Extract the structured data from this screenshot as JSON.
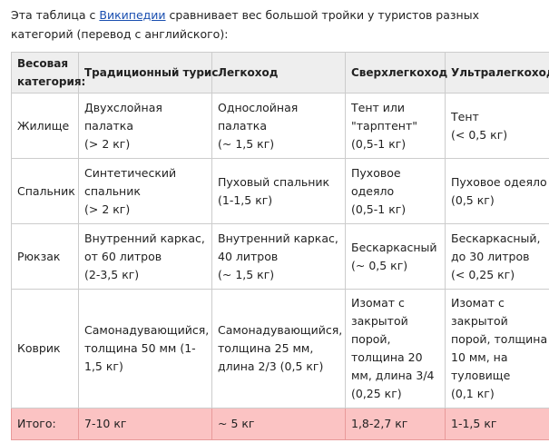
{
  "intro": {
    "before": "Эта таблица с ",
    "link": "Википедии",
    "after": " сравнивает вес большой тройки у туристов разных категорий (перевод с английского):"
  },
  "table": {
    "header": [
      [
        "Весовая",
        "категория:"
      ],
      [
        "Традиционный турис"
      ],
      [
        "Легкоход"
      ],
      [
        "Сверхлегкоход"
      ],
      [
        "Ультралегкоход"
      ]
    ],
    "rows": [
      [
        [
          "Жилище"
        ],
        [
          "Двухслойная",
          "палатка",
          "(> 2 кг)"
        ],
        [
          "Однослойная",
          "палатка",
          "(~ 1,5 кг)"
        ],
        [
          "Тент или",
          "\"тарптент\"",
          "(0,5-1 кг)"
        ],
        [
          "Тент",
          "(< 0,5 кг)"
        ]
      ],
      [
        [
          "Спальник"
        ],
        [
          "Синтетический",
          "спальник",
          "(> 2 кг)"
        ],
        [
          "Пуховый спальник",
          "(1-1,5 кг)"
        ],
        [
          "Пуховое",
          "одеяло",
          "(0,5-1 кг)"
        ],
        [
          "Пуховое одеяло",
          "(0,5 кг)"
        ]
      ],
      [
        [
          "Рюкзак"
        ],
        [
          "Внутренний каркас,",
          "от 60 литров",
          "(2-3,5 кг)"
        ],
        [
          "Внутренний каркас,",
          "40 литров",
          "(~ 1,5 кг)"
        ],
        [
          "Бескаркасный",
          "(~ 0,5 кг)"
        ],
        [
          "Бескаркасный,",
          "до 30 литров",
          "(< 0,25 кг)"
        ]
      ],
      [
        [
          "Коврик"
        ],
        [
          "Самонадувающийся,",
          "толщина 50 мм (1-",
          "1,5 кг)"
        ],
        [
          "Самонадувающийся,",
          "толщина 25 мм,",
          "длина 2/3 (0,5 кг)"
        ],
        [
          "Изомат с",
          "закрытой",
          "порой,",
          "толщина 20",
          "мм, длина 3/4",
          "(0,25 кг)"
        ],
        [
          "Изомат с",
          "закрытой",
          "порой, толщина",
          "10 мм, на",
          "туловище",
          "(0,1 кг)"
        ]
      ]
    ],
    "total": [
      [
        "Итого:"
      ],
      [
        "7-10 кг"
      ],
      [
        "~ 5 кг"
      ],
      [
        "1,8-2,7 кг"
      ],
      [
        "1-1,5 кг"
      ]
    ]
  }
}
